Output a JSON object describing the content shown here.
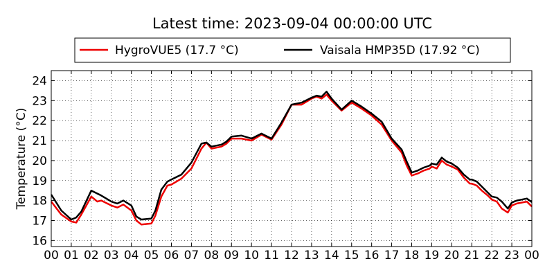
{
  "chart_data": {
    "type": "line",
    "title": "Latest time: 2023-09-04 00:00:00 UTC",
    "xlabel": "",
    "ylabel": "Temperature (°C)",
    "xlim": [
      0,
      24
    ],
    "ylim": [
      15.7,
      24.5
    ],
    "x_ticks": [
      "00",
      "01",
      "02",
      "03",
      "04",
      "05",
      "06",
      "07",
      "08",
      "09",
      "10",
      "11",
      "12",
      "13",
      "14",
      "15",
      "16",
      "17",
      "18",
      "19",
      "20",
      "21",
      "22",
      "23",
      "00"
    ],
    "y_ticks": [
      16,
      17,
      18,
      19,
      20,
      21,
      22,
      23,
      24
    ],
    "grid": true,
    "legend_placement": "top",
    "x": [
      0,
      0.5,
      1,
      1.25,
      1.5,
      2,
      2.3,
      2.5,
      3,
      3.3,
      3.6,
      4,
      4.25,
      4.5,
      5,
      5.2,
      5.5,
      5.8,
      6,
      6.5,
      7,
      7.5,
      7.75,
      8,
      8.5,
      8.75,
      9,
      9.5,
      10,
      10.5,
      11,
      11.5,
      12,
      12.5,
      13,
      13.25,
      13.5,
      13.75,
      14,
      14.5,
      15,
      15.5,
      16,
      16.5,
      17,
      17.5,
      17.75,
      18,
      18.3,
      18.6,
      18.9,
      19,
      19.25,
      19.5,
      19.75,
      20,
      20.3,
      20.6,
      20.9,
      21,
      21.25,
      21.5,
      21.8,
      22,
      22.25,
      22.5,
      22.8,
      23,
      23.25,
      23.5,
      23.75,
      24
    ],
    "series": [
      {
        "name": "HygroVUE5 (17.7 °C)",
        "color": "#ee0000",
        "y": [
          17.95,
          17.3,
          16.95,
          16.9,
          17.3,
          18.2,
          17.95,
          18.0,
          17.75,
          17.65,
          17.8,
          17.5,
          17.0,
          16.8,
          16.85,
          17.25,
          18.2,
          18.75,
          18.8,
          19.1,
          19.6,
          20.6,
          20.9,
          20.6,
          20.7,
          20.85,
          21.1,
          21.1,
          21.0,
          21.3,
          21.05,
          21.8,
          22.8,
          22.8,
          23.1,
          23.2,
          23.1,
          23.3,
          23.0,
          22.5,
          22.9,
          22.6,
          22.25,
          21.8,
          21.0,
          20.4,
          19.75,
          19.25,
          19.35,
          19.5,
          19.6,
          19.7,
          19.6,
          20.0,
          19.8,
          19.7,
          19.55,
          19.15,
          18.85,
          18.85,
          18.75,
          18.5,
          18.25,
          18.05,
          17.95,
          17.6,
          17.4,
          17.75,
          17.85,
          17.9,
          17.95,
          17.7
        ]
      },
      {
        "name": "Vaisala HMP35D (17.92 °C)",
        "color": "#000000",
        "y": [
          18.3,
          17.5,
          17.05,
          17.15,
          17.45,
          18.5,
          18.35,
          18.25,
          17.95,
          17.85,
          18.0,
          17.75,
          17.2,
          17.05,
          17.1,
          17.5,
          18.55,
          18.95,
          19.05,
          19.3,
          19.9,
          20.85,
          20.9,
          20.7,
          20.8,
          20.95,
          21.2,
          21.25,
          21.1,
          21.35,
          21.1,
          21.9,
          22.8,
          22.9,
          23.15,
          23.25,
          23.2,
          23.45,
          23.1,
          22.55,
          23.0,
          22.7,
          22.35,
          21.95,
          21.1,
          20.55,
          19.95,
          19.4,
          19.5,
          19.65,
          19.75,
          19.85,
          19.8,
          20.15,
          19.95,
          19.85,
          19.65,
          19.3,
          19.05,
          19.05,
          18.95,
          18.7,
          18.4,
          18.2,
          18.15,
          17.95,
          17.6,
          17.9,
          18.0,
          18.05,
          18.1,
          17.92
        ]
      }
    ]
  }
}
